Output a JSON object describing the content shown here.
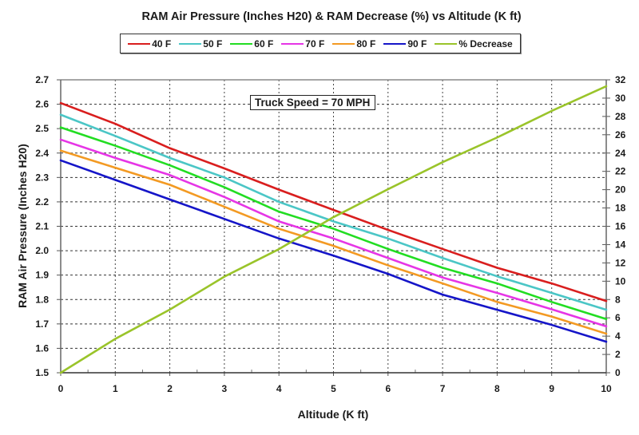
{
  "chart_data": {
    "type": "line",
    "title": "RAM Air Pressure (Inches H20) & RAM Decrease (%) vs Altitude (K ft)",
    "xlabel": "Altitude (K ft)",
    "ylabel": "RAM Air Pressure (Inches H20)",
    "y2label": "",
    "xlim": [
      0,
      10
    ],
    "ylim": [
      1.5,
      2.7
    ],
    "y2lim": [
      0,
      32
    ],
    "x_ticks": [
      "0",
      "1",
      "2",
      "3",
      "4",
      "5",
      "6",
      "7",
      "8",
      "9",
      "10"
    ],
    "y_ticks": [
      "1.5",
      "1.6",
      "1.7",
      "1.8",
      "1.9",
      "2.0",
      "2.1",
      "2.2",
      "2.3",
      "2.4",
      "2.5",
      "2.6",
      "2.7"
    ],
    "y2_ticks": [
      "0",
      "2",
      "4",
      "6",
      "8",
      "10",
      "12",
      "14",
      "16",
      "18",
      "20",
      "22",
      "24",
      "26",
      "28",
      "30",
      "32"
    ],
    "grid": true,
    "legend_position": "top",
    "annotation": "Truck Speed = 70 MPH",
    "x": [
      0,
      1,
      2,
      3,
      4,
      5,
      6,
      7,
      8,
      9,
      10
    ],
    "series": [
      {
        "name": "40 F",
        "color": "#d91e1e",
        "axis": "left",
        "values": [
          2.605,
          2.52,
          2.42,
          2.337,
          2.25,
          2.167,
          2.085,
          2.007,
          1.93,
          1.866,
          1.794
        ]
      },
      {
        "name": "50 F",
        "color": "#4bc6c6",
        "axis": "left",
        "values": [
          2.557,
          2.47,
          2.38,
          2.3,
          2.2,
          2.12,
          2.05,
          1.97,
          1.895,
          1.827,
          1.758
        ]
      },
      {
        "name": "60 F",
        "color": "#22dd22",
        "axis": "left",
        "values": [
          2.505,
          2.43,
          2.35,
          2.26,
          2.16,
          2.09,
          2.007,
          1.93,
          1.866,
          1.79,
          1.72
        ]
      },
      {
        "name": "70 F",
        "color": "#e635e6",
        "axis": "left",
        "values": [
          2.455,
          2.38,
          2.31,
          2.22,
          2.12,
          2.05,
          1.97,
          1.89,
          1.827,
          1.76,
          1.69
        ]
      },
      {
        "name": "80 F",
        "color": "#f39a23",
        "axis": "left",
        "values": [
          2.41,
          2.34,
          2.27,
          2.18,
          2.09,
          2.02,
          1.94,
          1.866,
          1.79,
          1.73,
          1.66
        ]
      },
      {
        "name": "90 F",
        "color": "#1515c8",
        "axis": "left",
        "values": [
          2.37,
          2.29,
          2.21,
          2.13,
          2.05,
          1.98,
          1.905,
          1.82,
          1.758,
          1.696,
          1.627
        ]
      },
      {
        "name": "% Decrease",
        "color": "#9ac42a",
        "axis": "right",
        "values": [
          0,
          3.7,
          6.9,
          10.5,
          13.5,
          17.0,
          20.05,
          23.0,
          25.7,
          28.6,
          31.3
        ]
      }
    ]
  }
}
